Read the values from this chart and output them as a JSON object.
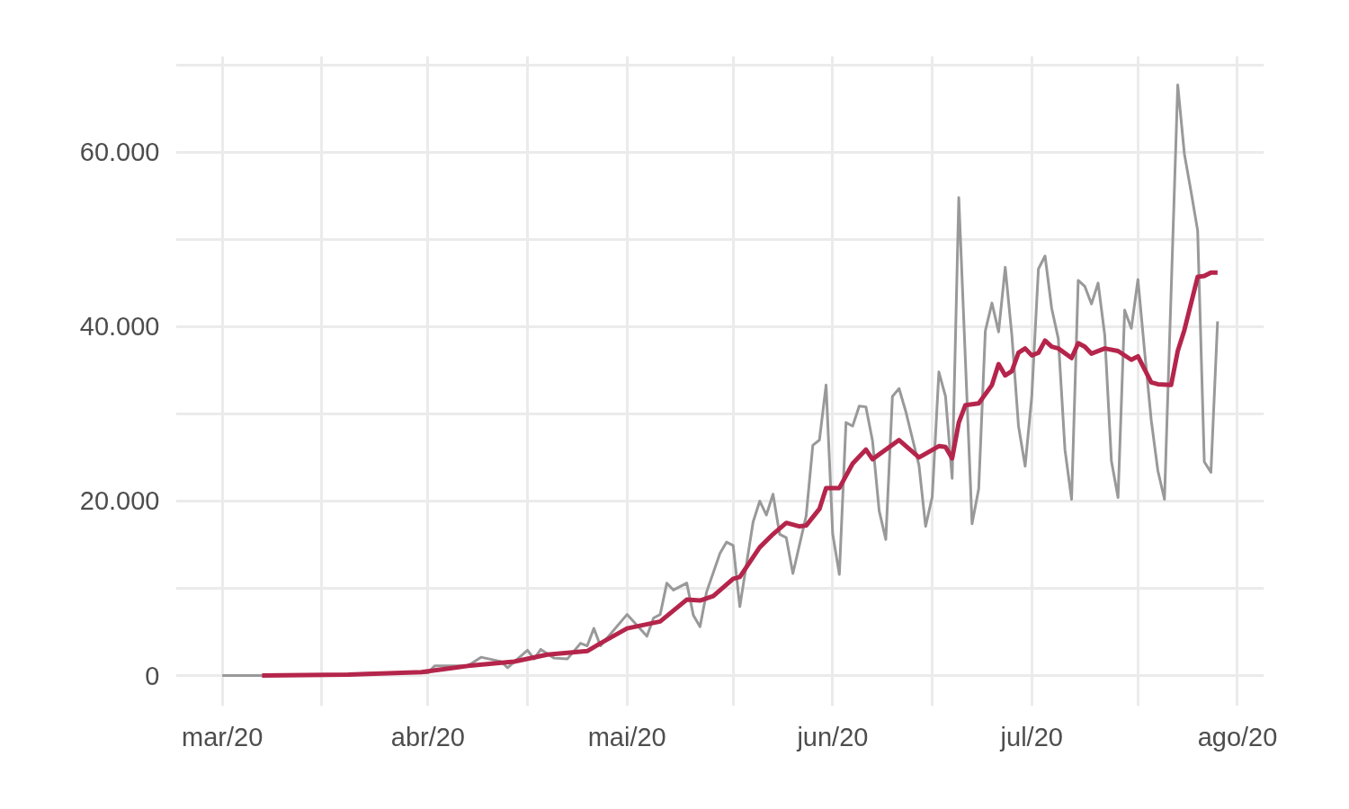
{
  "chart_data": {
    "type": "line",
    "xlim": [
      "2020-02-23",
      "2020-08-05"
    ],
    "ylim": [
      -3500,
      71000
    ],
    "xticks": [
      {
        "value": "2020-03-01",
        "label": "mar/20"
      },
      {
        "value": "2020-03-16",
        "label": null
      },
      {
        "value": "2020-04-01",
        "label": "abr/20"
      },
      {
        "value": "2020-04-16",
        "label": null
      },
      {
        "value": "2020-05-01",
        "label": "mai/20"
      },
      {
        "value": "2020-05-17",
        "label": null
      },
      {
        "value": "2020-06-01",
        "label": "jun/20"
      },
      {
        "value": "2020-06-16",
        "label": null
      },
      {
        "value": "2020-07-01",
        "label": "jul/20"
      },
      {
        "value": "2020-07-17",
        "label": null
      },
      {
        "value": "2020-08-01",
        "label": "ago/20"
      }
    ],
    "yticks": [
      0,
      {
        "value": 10000,
        "label": null
      },
      {
        "value": 20000,
        "label": "20.000"
      },
      {
        "value": 30000,
        "label": null
      },
      {
        "value": 40000,
        "label": "40.000"
      },
      {
        "value": 50000,
        "label": null
      },
      {
        "value": 60000,
        "label": "60.000"
      },
      {
        "value": 70000,
        "label": null
      }
    ],
    "grid": true,
    "marker": "none",
    "line_style": "solid",
    "series": [
      {
        "color": "#999999",
        "x": [
          "2020-03-01",
          "2020-03-15",
          "2020-03-25",
          "2020-04-01",
          "2020-04-02",
          "2020-04-07",
          "2020-04-09",
          "2020-04-12",
          "2020-04-13",
          "2020-04-16",
          "2020-04-17",
          "2020-04-18",
          "2020-04-19",
          "2020-04-20",
          "2020-04-22",
          "2020-04-24",
          "2020-04-25",
          "2020-04-26",
          "2020-04-27",
          "2020-05-01",
          "2020-05-04",
          "2020-05-05",
          "2020-05-06",
          "2020-05-07",
          "2020-05-08",
          "2020-05-10",
          "2020-05-11",
          "2020-05-12",
          "2020-05-13",
          "2020-05-15",
          "2020-05-16",
          "2020-05-17",
          "2020-05-18",
          "2020-05-20",
          "2020-05-21",
          "2020-05-22",
          "2020-05-23",
          "2020-05-24",
          "2020-05-25",
          "2020-05-26",
          "2020-05-28",
          "2020-05-29",
          "2020-05-30",
          "2020-05-31",
          "2020-06-01",
          "2020-06-02",
          "2020-06-03",
          "2020-06-04",
          "2020-06-05",
          "2020-06-06",
          "2020-06-07",
          "2020-06-08",
          "2020-06-09",
          "2020-06-10",
          "2020-06-11",
          "2020-06-12",
          "2020-06-14",
          "2020-06-15",
          "2020-06-16",
          "2020-06-17",
          "2020-06-18",
          "2020-06-19",
          "2020-06-20",
          "2020-06-22",
          "2020-06-23",
          "2020-06-24",
          "2020-06-25",
          "2020-06-26",
          "2020-06-27",
          "2020-06-28",
          "2020-06-29",
          "2020-06-30",
          "2020-07-01",
          "2020-07-02",
          "2020-07-03",
          "2020-07-04",
          "2020-07-05",
          "2020-07-06",
          "2020-07-07",
          "2020-07-08",
          "2020-07-09",
          "2020-07-10",
          "2020-07-11",
          "2020-07-12",
          "2020-07-13",
          "2020-07-14",
          "2020-07-15",
          "2020-07-16",
          "2020-07-17",
          "2020-07-18",
          "2020-07-19",
          "2020-07-20",
          "2020-07-21",
          "2020-07-23",
          "2020-07-24",
          "2020-07-25",
          "2020-07-26",
          "2020-07-27",
          "2020-07-28",
          "2020-07-29"
        ],
        "values": [
          0,
          0,
          300,
          300,
          1100,
          1100,
          2100,
          1600,
          900,
          2900,
          1900,
          3000,
          2500,
          2000,
          1900,
          3700,
          3400,
          5400,
          3400,
          7000,
          4500,
          6600,
          7000,
          10600,
          9800,
          10600,
          6900,
          5600,
          9600,
          14000,
          15300,
          14900,
          7900,
          17600,
          20000,
          18400,
          20800,
          16200,
          15800,
          11700,
          18300,
          26400,
          27000,
          33300,
          16200,
          11600,
          29000,
          28600,
          30900,
          30800,
          26900,
          18900,
          15600,
          32000,
          32900,
          30300,
          24100,
          17100,
          20500,
          34800,
          32000,
          22600,
          54800,
          17400,
          21400,
          39500,
          42700,
          39400,
          46800,
          39000,
          28600,
          24000,
          32000,
          46600,
          48100,
          42100,
          38600,
          25900,
          20200,
          45300,
          44600,
          42600,
          45000,
          39000,
          24600,
          20400,
          41900,
          39800,
          45400,
          37200,
          29300,
          23500,
          20200,
          67700,
          59800,
          55500,
          51000,
          24500,
          23300,
          40600
        ]
      },
      {
        "color": "#b5254b",
        "x": [
          "2020-03-07",
          "2020-03-20",
          "2020-03-31",
          "2020-04-07",
          "2020-04-14",
          "2020-04-19",
          "2020-04-25",
          "2020-04-27",
          "2020-05-01",
          "2020-05-06",
          "2020-05-10",
          "2020-05-12",
          "2020-05-14",
          "2020-05-17",
          "2020-05-18",
          "2020-05-21",
          "2020-05-23",
          "2020-05-25",
          "2020-05-27",
          "2020-05-28",
          "2020-05-30",
          "2020-05-31",
          "2020-06-02",
          "2020-06-04",
          "2020-06-06",
          "2020-06-07",
          "2020-06-11",
          "2020-06-14",
          "2020-06-17",
          "2020-06-18",
          "2020-06-19",
          "2020-06-20",
          "2020-06-21",
          "2020-06-23",
          "2020-06-25",
          "2020-06-26",
          "2020-06-27",
          "2020-06-28",
          "2020-06-29",
          "2020-06-30",
          "2020-07-01",
          "2020-07-02",
          "2020-07-03",
          "2020-07-04",
          "2020-07-05",
          "2020-07-07",
          "2020-07-08",
          "2020-07-09",
          "2020-07-10",
          "2020-07-12",
          "2020-07-14",
          "2020-07-16",
          "2020-07-17",
          "2020-07-19",
          "2020-07-20",
          "2020-07-22",
          "2020-07-23",
          "2020-07-24",
          "2020-07-26",
          "2020-07-27",
          "2020-07-28",
          "2020-07-29"
        ],
        "values": [
          0,
          100,
          400,
          1100,
          1600,
          2400,
          2800,
          3700,
          5400,
          6200,
          8700,
          8600,
          9100,
          11100,
          11300,
          14700,
          16200,
          17500,
          17100,
          17200,
          19100,
          21500,
          21500,
          24300,
          25900,
          24800,
          27000,
          25000,
          26300,
          26200,
          24900,
          29000,
          31000,
          31200,
          33300,
          35700,
          34400,
          34900,
          37000,
          37500,
          36700,
          37000,
          38400,
          37700,
          37500,
          36400,
          38100,
          37700,
          36900,
          37500,
          37200,
          36200,
          36600,
          33600,
          33400,
          33300,
          37200,
          39600,
          45700,
          45800,
          46200,
          46200
        ]
      }
    ]
  }
}
